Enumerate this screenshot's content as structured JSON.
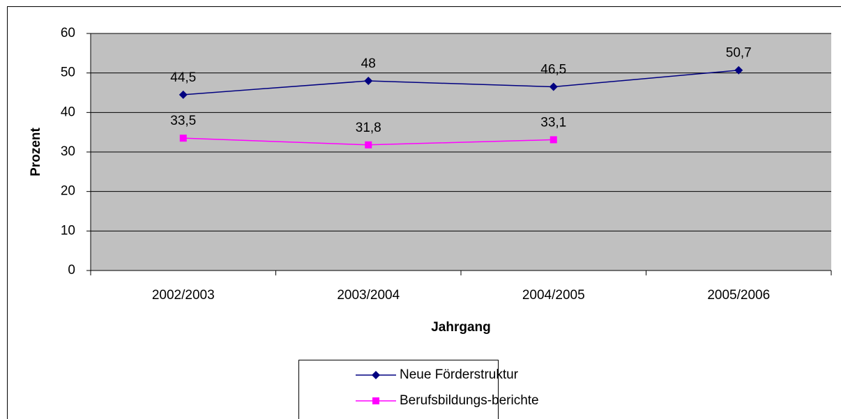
{
  "chart_data": {
    "type": "line",
    "categories": [
      "2002/2003",
      "2003/2004",
      "2004/2005",
      "2005/2006"
    ],
    "series": [
      {
        "name": "Neue Förderstruktur",
        "color": "#000080",
        "marker": "diamond",
        "values": [
          44.5,
          48,
          46.5,
          50.7
        ],
        "value_labels": [
          "44,5",
          "48",
          "46,5",
          "50,7"
        ]
      },
      {
        "name": "Berufsbildungs-berichte",
        "color": "#ff00ff",
        "marker": "square",
        "values": [
          33.5,
          31.8,
          33.1,
          null
        ],
        "value_labels": [
          "33,5",
          "31,8",
          "33,1",
          null
        ]
      }
    ],
    "y_label": "Prozent",
    "x_label": "Jahrgang",
    "ylim": [
      0,
      60
    ],
    "yticks": [
      0,
      10,
      20,
      30,
      40,
      50,
      60
    ],
    "grid": true,
    "legend": "bottom"
  }
}
